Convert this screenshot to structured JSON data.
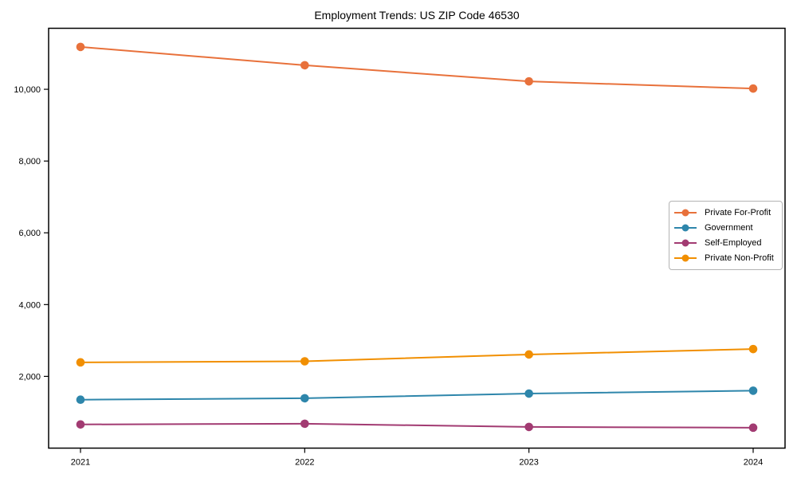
{
  "chart_data": {
    "type": "line",
    "title": "Employment Trends: US ZIP Code 46530",
    "x": [
      "2021",
      "2022",
      "2023",
      "2024"
    ],
    "series": [
      {
        "name": "Private For-Profit",
        "color": "#E8713B",
        "values": [
          11180,
          10670,
          10220,
          10020
        ]
      },
      {
        "name": "Government",
        "color": "#2E86AB",
        "values": [
          1350,
          1390,
          1520,
          1600
        ]
      },
      {
        "name": "Self-Employed",
        "color": "#A23B72",
        "values": [
          660,
          680,
          590,
          570
        ]
      },
      {
        "name": "Private Non-Profit",
        "color": "#F18F01",
        "values": [
          2390,
          2420,
          2610,
          2760
        ]
      }
    ],
    "yticks": [
      {
        "value": 2000,
        "label": "2,000"
      },
      {
        "value": 4000,
        "label": "4,000"
      },
      {
        "value": 6000,
        "label": "6,000"
      },
      {
        "value": 8000,
        "label": "8,000"
      },
      {
        "value": 10000,
        "label": "10,000"
      }
    ],
    "ylim": [
      0,
      11700
    ],
    "xlabel": "",
    "ylabel": "",
    "grid": false,
    "legend_position": "center-right",
    "marker": "circle",
    "axis_color": "#000000",
    "text_color": "#000000"
  }
}
